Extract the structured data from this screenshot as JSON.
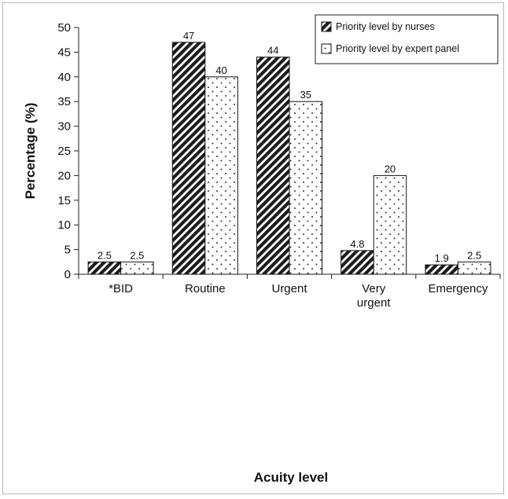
{
  "chart_data": {
    "type": "bar",
    "title": "",
    "xlabel": "Acuity level",
    "ylabel": "Percentage (%)",
    "ylim": [
      0,
      50
    ],
    "yticks": [
      0,
      5,
      10,
      15,
      20,
      25,
      30,
      35,
      40,
      45,
      50
    ],
    "grid": false,
    "legend_position": "top-right",
    "categories": [
      [
        "*BID"
      ],
      [
        "Routine"
      ],
      [
        "Urgent"
      ],
      [
        "Very",
        "urgent"
      ],
      [
        "Emergency"
      ]
    ],
    "series": [
      {
        "name": "Priority level by nurses",
        "pattern": "diagonal-hatch",
        "values": [
          2.5,
          47,
          44,
          4.8,
          1.9
        ],
        "labels": [
          "2.5",
          "47",
          "44",
          "4.8",
          "1.9"
        ]
      },
      {
        "name": "Priority level by expert panel",
        "pattern": "dots",
        "values": [
          2.5,
          40,
          35,
          20,
          2.5
        ],
        "labels": [
          "2.5",
          "40",
          "35",
          "20",
          "2.5"
        ]
      }
    ]
  }
}
